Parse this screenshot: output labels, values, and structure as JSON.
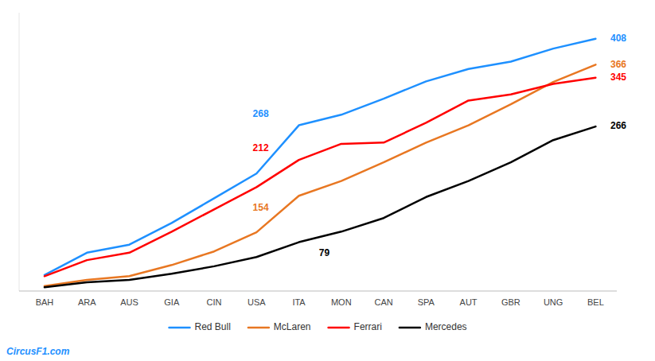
{
  "chart_data": {
    "type": "line",
    "categories": [
      "BAH",
      "ARA",
      "AUS",
      "GIA",
      "CIN",
      "USA",
      "ITA",
      "MON",
      "CAN",
      "SPA",
      "AUT",
      "GBR",
      "UNG",
      "BEL"
    ],
    "series": [
      {
        "name": "Red Bull",
        "color": "#1E90FF",
        "values": [
          26,
          62,
          75,
          110,
          150,
          190,
          268,
          285,
          311,
          339,
          359,
          371,
          392,
          408
        ]
      },
      {
        "name": "McLaren",
        "color": "#E87722",
        "values": [
          8,
          18,
          24,
          42,
          64,
          95,
          154,
          178,
          208,
          240,
          268,
          302,
          338,
          366
        ]
      },
      {
        "name": "Ferrari",
        "color": "#FF0000",
        "values": [
          24,
          50,
          62,
          96,
          132,
          168,
          212,
          238,
          240,
          272,
          308,
          318,
          335,
          345
        ]
      },
      {
        "name": "Mercedes",
        "color": "#000000",
        "values": [
          6,
          14,
          18,
          28,
          40,
          55,
          79,
          96,
          118,
          152,
          178,
          208,
          244,
          266
        ]
      }
    ],
    "annotations": [
      {
        "text": "268",
        "x": "ITA",
        "y": 268,
        "series": "Red Bull"
      },
      {
        "text": "212",
        "x": "ITA",
        "y": 212,
        "series": "Ferrari"
      },
      {
        "text": "154",
        "x": "ITA",
        "y": 154,
        "series": "McLaren"
      },
      {
        "text": "79",
        "x": "ITA",
        "y": 79,
        "series": "Mercedes"
      },
      {
        "text": "408",
        "x": "BEL",
        "y": 408,
        "series": "Red Bull"
      },
      {
        "text": "366",
        "x": "BEL",
        "y": 366,
        "series": "McLaren"
      },
      {
        "text": "345",
        "x": "BEL",
        "y": 345,
        "series": "Ferrari"
      },
      {
        "text": "266",
        "x": "BEL",
        "y": 266,
        "series": "Mercedes"
      }
    ],
    "watermark": "CircusF1.com",
    "ylim": [
      0,
      450
    ],
    "tick_labels": "x",
    "grid": false,
    "legend": "bottom"
  }
}
